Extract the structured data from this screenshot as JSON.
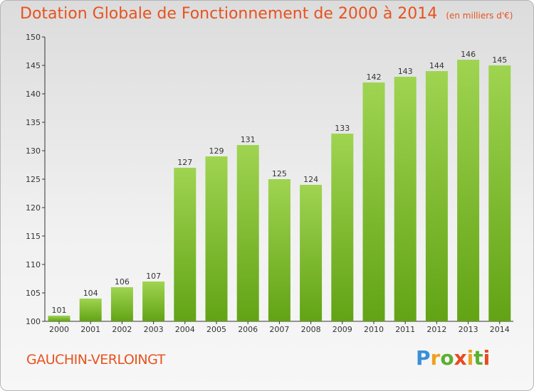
{
  "header": {
    "title": "Dotation Globale de Fonctionnement de 2000 à 2014",
    "subtitle": "(en milliers d'€)"
  },
  "footer": {
    "commune": "GAUCHIN-VERLOINGT",
    "logo_text": "Proxiti"
  },
  "colors": {
    "accent": "#e8521f",
    "bar_top": "#9fd451",
    "bar_bottom": "#62a315"
  },
  "chart_data": {
    "type": "bar",
    "title": "Dotation Globale de Fonctionnement de 2000 à 2014",
    "xlabel": "",
    "ylabel": "",
    "categories": [
      "2000",
      "2001",
      "2002",
      "2003",
      "2004",
      "2005",
      "2006",
      "2007",
      "2008",
      "2009",
      "2010",
      "2011",
      "2012",
      "2013",
      "2014"
    ],
    "values": [
      101,
      104,
      106,
      107,
      127,
      129,
      131,
      125,
      124,
      133,
      142,
      143,
      144,
      146,
      145
    ],
    "ylim": [
      100,
      150
    ],
    "yticks": [
      100,
      105,
      110,
      115,
      120,
      125,
      130,
      135,
      140,
      145,
      150
    ],
    "grid": false,
    "data_labels": true
  }
}
